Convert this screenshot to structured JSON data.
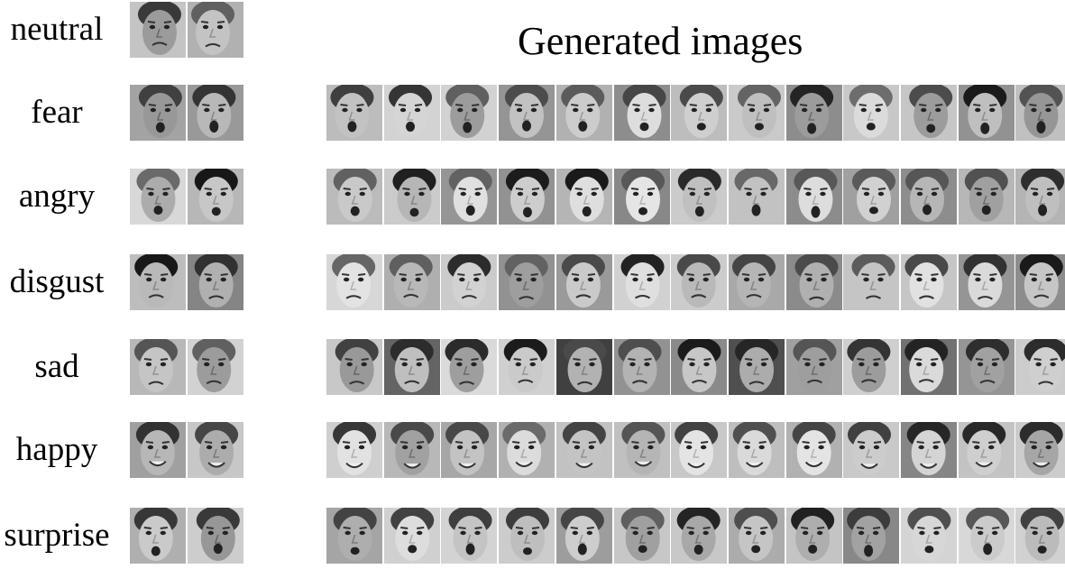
{
  "figure": {
    "title": "Generated images",
    "rows": [
      {
        "label": "neutral",
        "real_count": 2,
        "generated_count": 0
      },
      {
        "label": "fear",
        "real_count": 2,
        "generated_count": 13
      },
      {
        "label": "angry",
        "real_count": 2,
        "generated_count": 13
      },
      {
        "label": "disgust",
        "real_count": 2,
        "generated_count": 13
      },
      {
        "label": "sad",
        "real_count": 2,
        "generated_count": 13
      },
      {
        "label": "happy",
        "real_count": 2,
        "generated_count": 13
      },
      {
        "label": "surprise",
        "real_count": 2,
        "generated_count": 13
      }
    ]
  }
}
